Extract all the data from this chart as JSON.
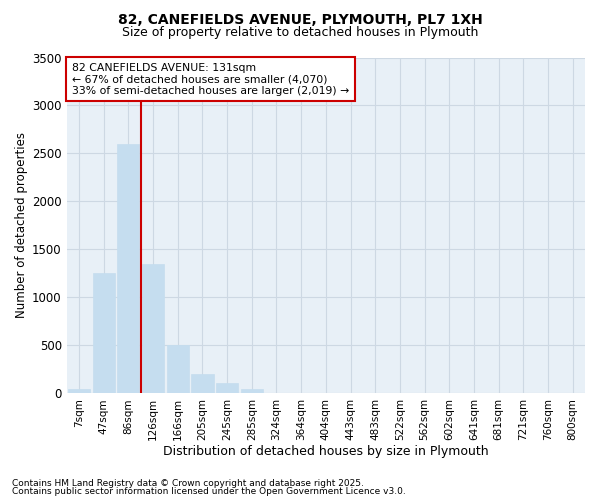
{
  "title1": "82, CANEFIELDS AVENUE, PLYMOUTH, PL7 1XH",
  "title2": "Size of property relative to detached houses in Plymouth",
  "xlabel": "Distribution of detached houses by size in Plymouth",
  "ylabel": "Number of detached properties",
  "footnote1": "Contains HM Land Registry data © Crown copyright and database right 2025.",
  "footnote2": "Contains public sector information licensed under the Open Government Licence v3.0.",
  "annotation_line1": "82 CANEFIELDS AVENUE: 131sqm",
  "annotation_line2": "← 67% of detached houses are smaller (4,070)",
  "annotation_line3": "33% of semi-detached houses are larger (2,019) →",
  "bar_labels": [
    "7sqm",
    "47sqm",
    "86sqm",
    "126sqm",
    "166sqm",
    "205sqm",
    "245sqm",
    "285sqm",
    "324sqm",
    "364sqm",
    "404sqm",
    "443sqm",
    "483sqm",
    "522sqm",
    "562sqm",
    "602sqm",
    "641sqm",
    "681sqm",
    "721sqm",
    "760sqm",
    "800sqm"
  ],
  "bar_values": [
    50,
    1250,
    2600,
    1350,
    500,
    200,
    110,
    50,
    5,
    5,
    0,
    0,
    0,
    0,
    0,
    0,
    0,
    0,
    0,
    0,
    0
  ],
  "bar_color": "#c5ddef",
  "bar_edge_color": "#c5ddef",
  "grid_color": "#cdd8e3",
  "background_color": "#e8f0f7",
  "vline_color": "#cc0000",
  "box_color": "#cc0000",
  "ylim": [
    0,
    3500
  ],
  "yticks": [
    0,
    500,
    1000,
    1500,
    2000,
    2500,
    3000,
    3500
  ],
  "vline_pos": 2.5,
  "fig_width": 6.0,
  "fig_height": 5.0,
  "dpi": 100
}
